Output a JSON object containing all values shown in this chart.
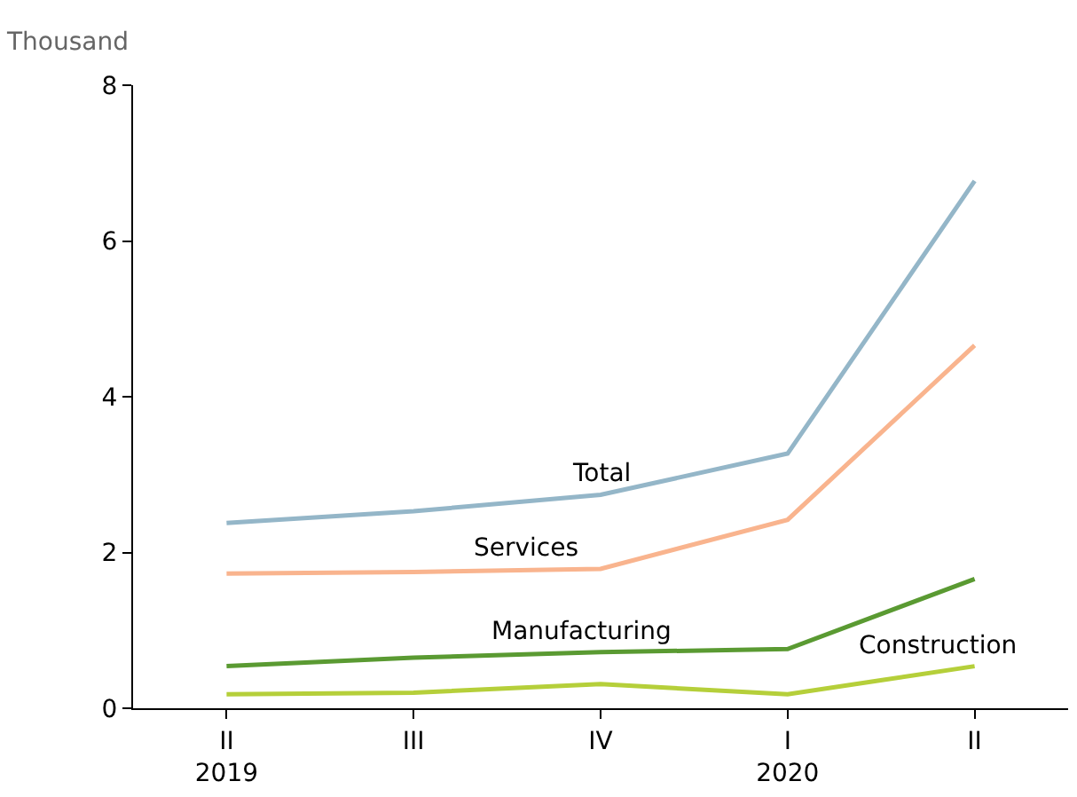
{
  "chart_data": {
    "type": "line",
    "ylabel": "Thousand",
    "categories": [
      "II\n2019",
      "III",
      "IV",
      "I\n2020",
      "II"
    ],
    "series": [
      {
        "name": "Total",
        "color": "#94b6c8",
        "values": [
          2.38,
          2.53,
          2.74,
          3.27,
          6.77
        ]
      },
      {
        "name": "Services",
        "color": "#f9b48e",
        "values": [
          1.73,
          1.75,
          1.79,
          2.42,
          4.66
        ]
      },
      {
        "name": "Manufacturing",
        "color": "#5a9a32",
        "values": [
          0.54,
          0.65,
          0.72,
          0.76,
          1.66
        ]
      },
      {
        "name": "Construction",
        "color": "#b5cf3a",
        "values": [
          0.18,
          0.2,
          0.31,
          0.18,
          0.54
        ]
      }
    ],
    "ylim": [
      0,
      8
    ],
    "yticks": [
      0,
      2,
      4,
      6,
      8
    ],
    "legend": false,
    "marker": "none",
    "line_style": "solid"
  }
}
